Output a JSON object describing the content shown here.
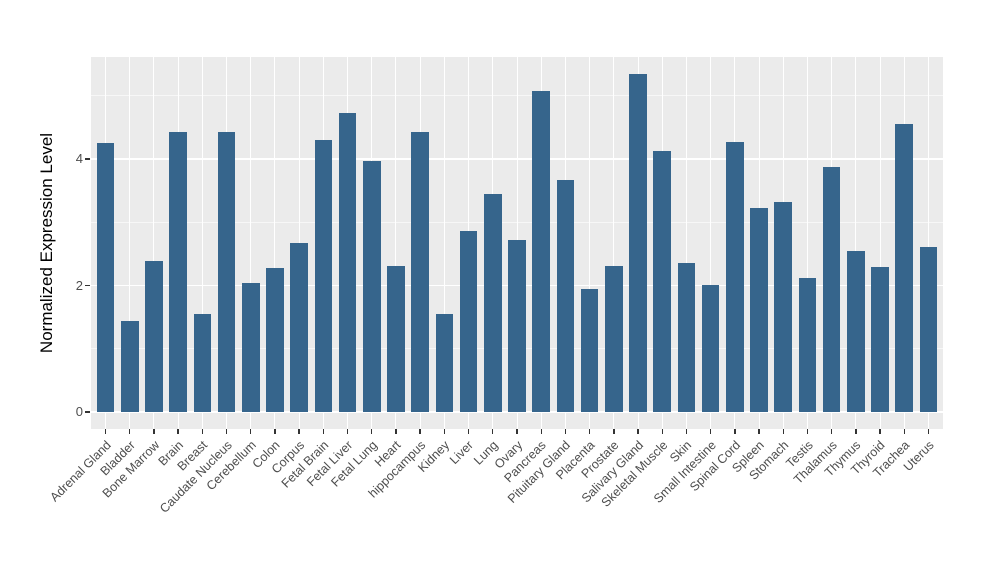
{
  "chart_data": {
    "type": "bar",
    "title": "",
    "xlabel": "",
    "ylabel": "Normalized Expression Level",
    "categories": [
      "Adrenal Gland",
      "Bladder",
      "Bone Marrow",
      "Brain",
      "Breast",
      "Caudate Nucleus",
      "Cerebellum",
      "Colon",
      "Corpus",
      "Fetal Brain",
      "Fetal Liver",
      "Fetal Lung",
      "Heart",
      "hippocampus",
      "Kidney",
      "Liver",
      "Lung",
      "Ovary",
      "Pancreas",
      "Pituitary Gland",
      "Placenta",
      "Prostate",
      "Salivary Gland",
      "Skeletal Muscle",
      "Skin",
      "Small Intestine",
      "Spinal Cord",
      "Spleen",
      "Stomach",
      "Testis",
      "Thalamus",
      "Thymus",
      "Thyroid",
      "Trachea",
      "Uterus"
    ],
    "values": [
      4.25,
      1.43,
      2.39,
      4.43,
      1.55,
      4.42,
      2.03,
      2.28,
      2.67,
      4.3,
      4.73,
      3.96,
      2.3,
      4.42,
      1.55,
      2.86,
      3.44,
      2.72,
      5.08,
      3.67,
      1.94,
      2.3,
      5.34,
      4.12,
      2.36,
      2.01,
      4.27,
      3.22,
      3.32,
      2.11,
      3.87,
      2.54,
      2.29,
      4.55,
      2.61
    ],
    "y_ticks": [
      0,
      2,
      4
    ],
    "y_minor_ticks": [
      1,
      3,
      5
    ],
    "ylim": [
      -0.27,
      5.61
    ],
    "x_tick_rotation": 45,
    "grid": "horizontal major+minor, vertical major at category centers",
    "legend": false
  },
  "colors": {
    "bar": "#36658C",
    "panel_background": "#EBEBEB",
    "figure_background": "#FFFFFF",
    "grid_major": "#FFFFFF",
    "grid_minor": "#F7F7F7",
    "axis_text": "#4D4D4D",
    "axis_title": "#000000",
    "tick_mark": "#333333"
  }
}
